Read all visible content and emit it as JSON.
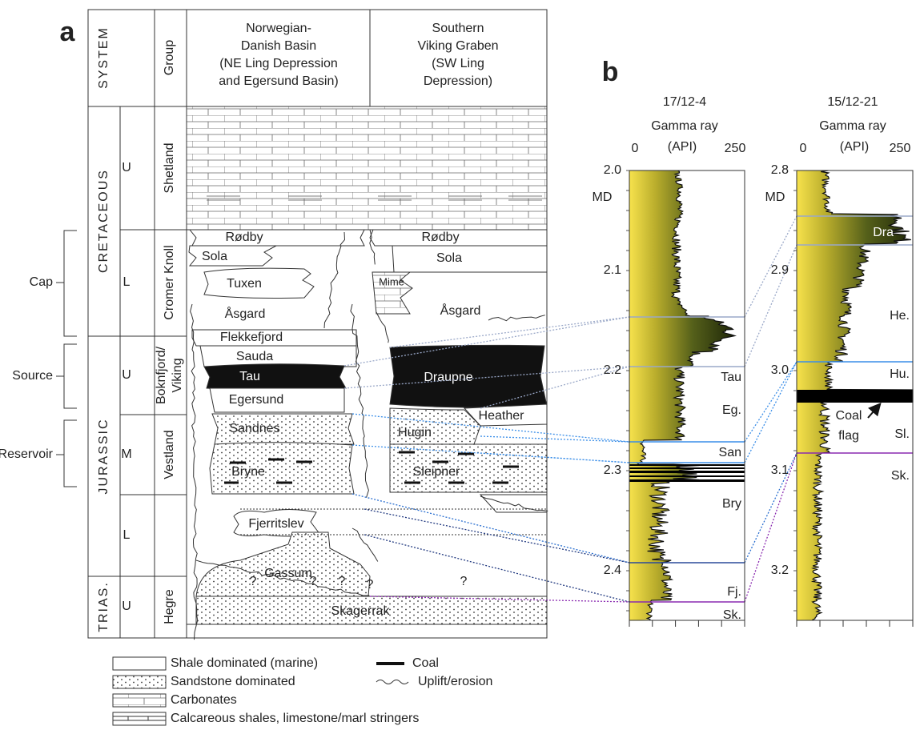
{
  "panel_a": {
    "label": "a",
    "header": {
      "system": "SYSTEM",
      "group": "Group",
      "basins": [
        [
          "Norwegian-",
          "Danish Basin",
          "(NE Ling Depression",
          "and Egersund Basin)"
        ],
        [
          "Southern",
          "Viking Graben",
          "(SW Ling",
          "Depression)"
        ]
      ]
    },
    "systems": [
      "CRETACEOUS",
      "JURASSIC",
      "TRIAS."
    ],
    "series": [
      "U",
      "L",
      "U",
      "M",
      "L",
      "U"
    ],
    "groups": [
      "Shetland",
      "Cromer Knoll",
      [
        "Boknfjord/",
        "Viking"
      ],
      "Vestland",
      "Hegre"
    ],
    "intervals": [
      "Cap",
      "Source",
      "Reservoir"
    ],
    "formations_west": [
      "Rødby",
      "Sola",
      "Tuxen",
      "Åsgard",
      "Flekkefjord",
      "Sauda",
      "Tau",
      "Egersund",
      "Sandnes",
      "Bryne",
      "Fjerritslev",
      "Gassum",
      "Skagerrak"
    ],
    "formations_east": [
      "Rødby",
      "Sola",
      "Mime",
      "Åsgard",
      "Draupne",
      "Heather",
      "Hugin",
      "Sleipner"
    ],
    "uncertain": [
      "?",
      "?",
      "?",
      "?",
      "?"
    ]
  },
  "panel_b": {
    "label": "b",
    "wells": [
      {
        "name": "17/12-4",
        "log": "Gamma ray",
        "scale": [
          "0",
          "(API)",
          "250"
        ],
        "depth_label": "MD",
        "depths": [
          "2.0",
          "2.1",
          "2.2",
          "2.3",
          "2.4"
        ],
        "units": [
          "Tau",
          "Eg.",
          "San",
          "Bry",
          "Fj.",
          "Sk."
        ]
      },
      {
        "name": "15/12-21",
        "log": "Gamma ray",
        "scale": [
          "0",
          "(API)",
          "250"
        ],
        "depth_label": "MD",
        "depths": [
          "2.8",
          "2.9",
          "3.0",
          "3.1",
          "3.2"
        ],
        "units": [
          "Dra",
          "He.",
          "Hu.",
          "Sl.",
          "Sk."
        ],
        "note": [
          "Coal",
          "flag"
        ]
      }
    ]
  },
  "legend": [
    "Shale dominated (marine)",
    "Sandstone dominated",
    "Carbonates",
    "Calcareous shales, limestone/marl stringers",
    "Coal",
    "Uplift/erosion"
  ]
}
